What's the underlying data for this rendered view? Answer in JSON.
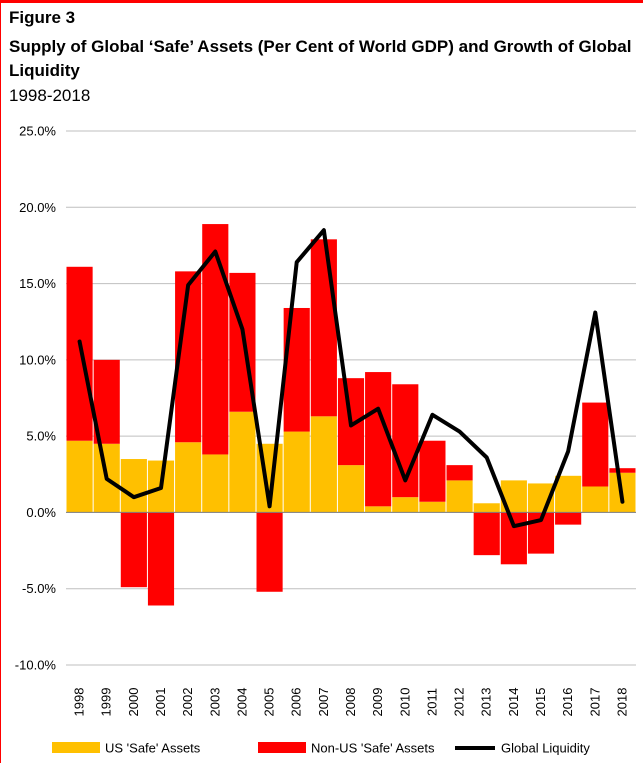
{
  "figure": {
    "label": "Figure 3",
    "title": "Supply of Global ‘Safe’ Assets (Per Cent of World GDP) and Growth of Global Liquidity",
    "subtitle": "1998-2018"
  },
  "colors": {
    "us": "#ffc000",
    "non_us": "#ff0000",
    "liquidity": "#000000",
    "grid": "#bfbfbf",
    "rule": "#ff0000"
  },
  "chart_data": {
    "type": "bar",
    "stacked": true,
    "categories": [
      "1998",
      "1999",
      "2000",
      "2001",
      "2002",
      "2003",
      "2004",
      "2005",
      "2006",
      "2007",
      "2008",
      "2009",
      "2010",
      "2011",
      "2012",
      "2013",
      "2014",
      "2015",
      "2016",
      "2017",
      "2018"
    ],
    "series": [
      {
        "name": "US 'Safe' Assets",
        "kind": "bar",
        "color": "#ffc000",
        "values": [
          4.7,
          4.5,
          3.5,
          3.4,
          4.6,
          3.8,
          6.6,
          4.5,
          5.3,
          6.3,
          3.1,
          0.4,
          1.0,
          0.7,
          2.1,
          0.6,
          2.1,
          1.9,
          2.4,
          1.7,
          2.6
        ]
      },
      {
        "name": "Non-US 'Safe' Assets",
        "kind": "bar",
        "color": "#ff0000",
        "values": [
          11.4,
          5.5,
          -4.9,
          -6.1,
          11.2,
          15.1,
          9.1,
          -5.2,
          8.1,
          11.6,
          5.7,
          8.8,
          7.4,
          4.0,
          1.0,
          -2.8,
          -3.4,
          -2.7,
          -0.8,
          5.5,
          0.3
        ]
      },
      {
        "name": "Global Liquidity",
        "kind": "line",
        "color": "#000000",
        "values": [
          11.2,
          2.2,
          1.0,
          1.6,
          14.9,
          17.1,
          12.0,
          0.4,
          16.4,
          18.5,
          5.7,
          6.8,
          2.1,
          6.4,
          5.3,
          3.6,
          -0.9,
          -0.5,
          4.0,
          13.1,
          0.7
        ]
      }
    ],
    "y_ticks": [
      "25.0%",
      "20.0%",
      "15.0%",
      "10.0%",
      "5.0%",
      "0.0%",
      "-5.0%",
      "-10.0%"
    ],
    "ylim": [
      -10,
      25
    ],
    "y_step": 5,
    "grid": true,
    "legend_position": "bottom",
    "xlabel": "",
    "ylabel": ""
  }
}
